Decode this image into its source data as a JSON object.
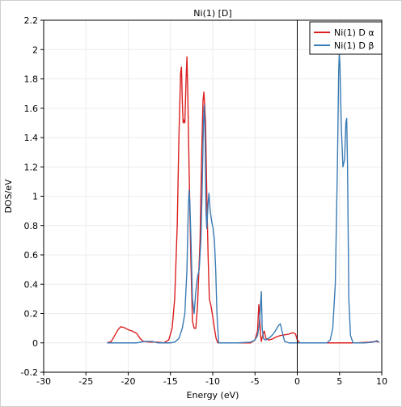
{
  "chart_data": {
    "type": "line",
    "title": "Ni(1) [D]",
    "xlabel": "Energy (eV)",
    "ylabel": "DOS/eV",
    "xlim": [
      -30,
      10
    ],
    "ylim": [
      -0.2,
      2.2
    ],
    "xticks": [
      -30,
      -25,
      -20,
      -15,
      -10,
      -5,
      0,
      5,
      10
    ],
    "yticks": [
      -0.2,
      0,
      0.2,
      0.4,
      0.6,
      0.8,
      1,
      1.2,
      1.4,
      1.6,
      1.8,
      2,
      2.2
    ],
    "grid": true,
    "legend_position": "top-right",
    "fermi_line_x": 0,
    "series": [
      {
        "name": "Ni(1) D α",
        "color": "#dd1f1f",
        "points": [
          [
            -22.5,
            0
          ],
          [
            -22,
            0.01
          ],
          [
            -21.6,
            0.05
          ],
          [
            -21.2,
            0.09
          ],
          [
            -20.9,
            0.11
          ],
          [
            -20.5,
            0.105
          ],
          [
            -20.0,
            0.09
          ],
          [
            -19.5,
            0.08
          ],
          [
            -19.0,
            0.065
          ],
          [
            -18.6,
            0.03
          ],
          [
            -18.2,
            0.01
          ],
          [
            -17.5,
            0.005
          ],
          [
            -16.5,
            0.005
          ],
          [
            -15.8,
            0.0
          ],
          [
            -15.2,
            0.02
          ],
          [
            -14.8,
            0.1
          ],
          [
            -14.5,
            0.3
          ],
          [
            -14.2,
            0.8
          ],
          [
            -14.0,
            1.4
          ],
          [
            -13.8,
            1.84
          ],
          [
            -13.7,
            1.88
          ],
          [
            -13.6,
            1.65
          ],
          [
            -13.5,
            1.5
          ],
          [
            -13.4,
            1.52
          ],
          [
            -13.3,
            1.5
          ],
          [
            -13.15,
            1.8
          ],
          [
            -13.05,
            1.95
          ],
          [
            -12.95,
            1.7
          ],
          [
            -12.8,
            1.2
          ],
          [
            -12.6,
            0.6
          ],
          [
            -12.4,
            0.15
          ],
          [
            -12.2,
            0.1
          ],
          [
            -12.0,
            0.1
          ],
          [
            -11.8,
            0.25
          ],
          [
            -11.5,
            0.7
          ],
          [
            -11.3,
            1.3
          ],
          [
            -11.15,
            1.65
          ],
          [
            -11.05,
            1.71
          ],
          [
            -10.95,
            1.62
          ],
          [
            -10.85,
            1.5
          ],
          [
            -10.7,
            1.0
          ],
          [
            -10.55,
            0.6
          ],
          [
            -10.4,
            0.3
          ],
          [
            -10.2,
            0.25
          ],
          [
            -10.0,
            0.18
          ],
          [
            -9.8,
            0.1
          ],
          [
            -9.6,
            0.03
          ],
          [
            -9.4,
            0.0
          ],
          [
            -7.0,
            0.0
          ],
          [
            -5.5,
            0.0
          ],
          [
            -5.0,
            0.02
          ],
          [
            -4.7,
            0.08
          ],
          [
            -4.55,
            0.26
          ],
          [
            -4.45,
            0.2
          ],
          [
            -4.35,
            0.05
          ],
          [
            -4.25,
            0.01
          ],
          [
            -4.1,
            0.05
          ],
          [
            -3.9,
            0.08
          ],
          [
            -3.7,
            0.03
          ],
          [
            -3.4,
            0.02
          ],
          [
            -3.0,
            0.025
          ],
          [
            -2.5,
            0.04
          ],
          [
            -2.0,
            0.05
          ],
          [
            -1.5,
            0.055
          ],
          [
            -1.0,
            0.06
          ],
          [
            -0.5,
            0.07
          ],
          [
            -0.2,
            0.06
          ],
          [
            0.0,
            0.02
          ],
          [
            0.3,
            0.0
          ],
          [
            4.0,
            0.0
          ],
          [
            7.0,
            0.0
          ],
          [
            8.5,
            0.005
          ],
          [
            9.3,
            0.01
          ],
          [
            9.7,
            0.005
          ]
        ]
      },
      {
        "name": "Ni(1) D β",
        "color": "#3a7bb5",
        "points": [
          [
            -22.5,
            0
          ],
          [
            -19.0,
            0
          ],
          [
            -18.0,
            0.01
          ],
          [
            -17.2,
            0.01
          ],
          [
            -16.5,
            0.0
          ],
          [
            -15.0,
            0.0
          ],
          [
            -14.5,
            0.005
          ],
          [
            -14.0,
            0.03
          ],
          [
            -13.6,
            0.1
          ],
          [
            -13.3,
            0.2
          ],
          [
            -13.05,
            0.5
          ],
          [
            -12.9,
            0.9
          ],
          [
            -12.8,
            1.04
          ],
          [
            -12.7,
            0.95
          ],
          [
            -12.55,
            0.65
          ],
          [
            -12.4,
            0.3
          ],
          [
            -12.2,
            0.2
          ],
          [
            -12.0,
            0.35
          ],
          [
            -11.8,
            0.45
          ],
          [
            -11.6,
            0.5
          ],
          [
            -11.4,
            0.7
          ],
          [
            -11.25,
            1.05
          ],
          [
            -11.1,
            1.5
          ],
          [
            -11.0,
            1.62
          ],
          [
            -10.9,
            1.4
          ],
          [
            -10.8,
            0.9
          ],
          [
            -10.7,
            0.78
          ],
          [
            -10.55,
            0.95
          ],
          [
            -10.45,
            1.02
          ],
          [
            -10.3,
            0.9
          ],
          [
            -10.1,
            0.82
          ],
          [
            -9.95,
            0.78
          ],
          [
            -9.8,
            0.7
          ],
          [
            -9.65,
            0.5
          ],
          [
            -9.5,
            0.2
          ],
          [
            -9.3,
            0.0
          ],
          [
            -7.0,
            0.0
          ],
          [
            -5.5,
            0.005
          ],
          [
            -5.0,
            0.02
          ],
          [
            -4.7,
            0.05
          ],
          [
            -4.5,
            0.12
          ],
          [
            -4.35,
            0.25
          ],
          [
            -4.25,
            0.35
          ],
          [
            -4.15,
            0.1
          ],
          [
            -4.0,
            0.03
          ],
          [
            -3.8,
            0.02
          ],
          [
            -3.4,
            0.03
          ],
          [
            -3.0,
            0.05
          ],
          [
            -2.6,
            0.08
          ],
          [
            -2.2,
            0.12
          ],
          [
            -2.0,
            0.13
          ],
          [
            -1.8,
            0.08
          ],
          [
            -1.5,
            0.01
          ],
          [
            -1.0,
            0.0
          ],
          [
            3.5,
            0.0
          ],
          [
            3.9,
            0.02
          ],
          [
            4.2,
            0.1
          ],
          [
            4.5,
            0.4
          ],
          [
            4.75,
            1.2
          ],
          [
            4.9,
            1.85
          ],
          [
            4.97,
            1.98
          ],
          [
            5.05,
            1.9
          ],
          [
            5.2,
            1.5
          ],
          [
            5.4,
            1.2
          ],
          [
            5.6,
            1.25
          ],
          [
            5.75,
            1.5
          ],
          [
            5.85,
            1.53
          ],
          [
            5.95,
            1.2
          ],
          [
            6.1,
            0.3
          ],
          [
            6.3,
            0.05
          ],
          [
            6.6,
            0.0
          ],
          [
            8.0,
            0.0
          ],
          [
            9.0,
            0.005
          ],
          [
            9.4,
            0.015
          ],
          [
            9.7,
            0.005
          ]
        ]
      }
    ]
  }
}
